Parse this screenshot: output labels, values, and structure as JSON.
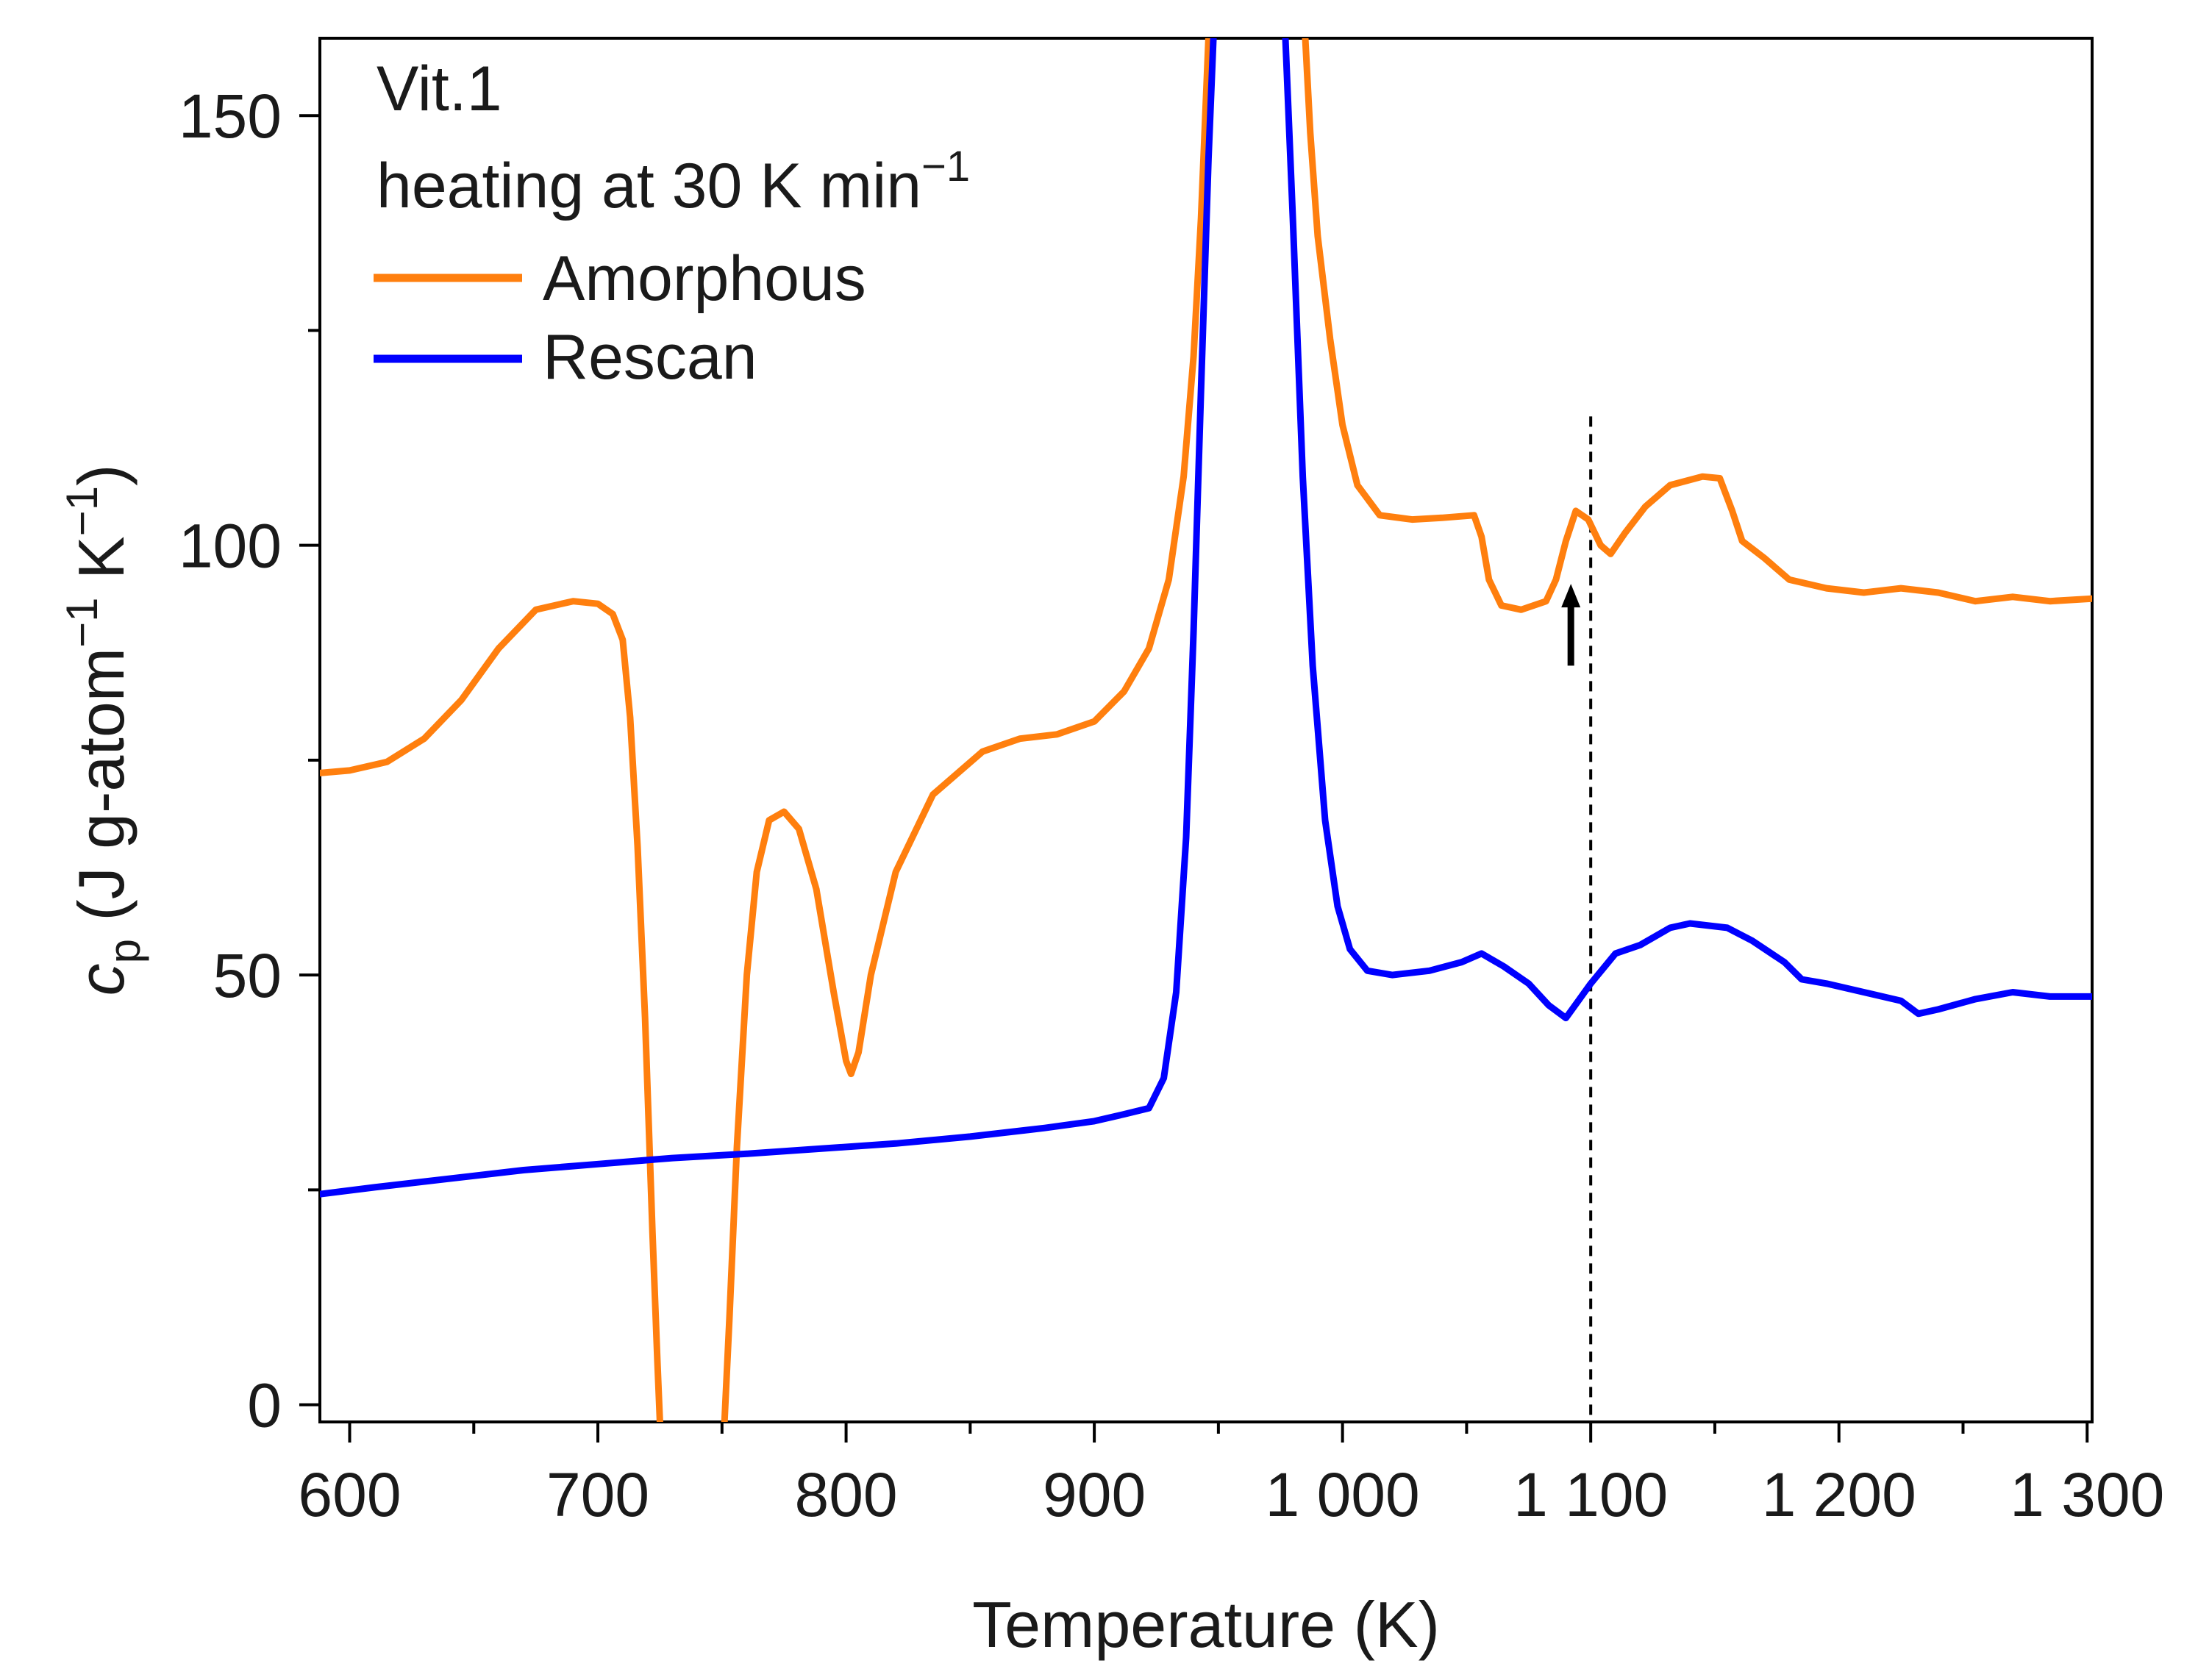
{
  "chart_data": {
    "type": "line",
    "title": "",
    "annotations": [
      "Vit.1",
      "heating at 30 K min",
      "−1"
    ],
    "xlabel": "Temperature (K)",
    "ylabel": {
      "prefix": "c",
      "subscript": "p",
      "mid": " (J g-atom",
      "sup1": "−1",
      "mid2": " K",
      "sup2": "−1",
      "suffix": ")"
    },
    "xlim": [
      588,
      1302
    ],
    "ylim": [
      -2,
      159
    ],
    "xticks": [
      600,
      700,
      800,
      900,
      1000,
      1100,
      1200,
      1300
    ],
    "xtick_labels": [
      "600",
      "700",
      "800",
      "900",
      "1 000",
      "1 100",
      "1 200",
      "1 300"
    ],
    "xminor": [
      650,
      750,
      850,
      950,
      1050,
      1150,
      1250
    ],
    "yticks": [
      0,
      50,
      100,
      150
    ],
    "ytick_labels": [
      "0",
      "50",
      "100",
      "150"
    ],
    "yminor": [
      25,
      75,
      125
    ],
    "reference_line": {
      "x": 1100,
      "y_top": 115,
      "style": "dashed"
    },
    "arrow": {
      "x": 1092,
      "y_from": 86,
      "y_to": 95
    },
    "series": [
      {
        "name": "Amorphous",
        "color": "#ff7f0e",
        "segments": [
          [
            [
              588,
              73.5
            ],
            [
              600,
              73.8
            ],
            [
              615,
              74.8
            ],
            [
              630,
              77.5
            ],
            [
              645,
              82
            ],
            [
              660,
              88
            ],
            [
              675,
              92.5
            ],
            [
              690,
              93.5
            ],
            [
              700,
              93.2
            ],
            [
              706,
              92
            ],
            [
              710,
              89
            ],
            [
              713,
              80
            ],
            [
              716,
              65
            ],
            [
              719,
              45
            ],
            [
              722,
              20
            ],
            [
              724,
              5
            ],
            [
              725,
              -2
            ]
          ],
          [
            [
              751,
              -2
            ],
            [
              753,
              10
            ],
            [
              756,
              30
            ],
            [
              760,
              50
            ],
            [
              764,
              62
            ],
            [
              769,
              68
            ],
            [
              775,
              69
            ],
            [
              781,
              67
            ],
            [
              788,
              60
            ],
            [
              795,
              48
            ],
            [
              800,
              40
            ],
            [
              802,
              38.5
            ],
            [
              805,
              41
            ],
            [
              810,
              50
            ],
            [
              820,
              62
            ],
            [
              835,
              71
            ],
            [
              855,
              76
            ],
            [
              870,
              77.5
            ],
            [
              885,
              78
            ],
            [
              900,
              79.5
            ],
            [
              912,
              83
            ],
            [
              922,
              88
            ],
            [
              930,
              96
            ],
            [
              936,
              108
            ],
            [
              940,
              122
            ],
            [
              943,
              138
            ],
            [
              946,
              159
            ]
          ],
          [
            [
              985,
              159
            ],
            [
              987,
              148
            ],
            [
              990,
              136
            ],
            [
              995,
              124
            ],
            [
              1000,
              114
            ],
            [
              1006,
              107
            ],
            [
              1015,
              103.5
            ],
            [
              1028,
              103
            ],
            [
              1040,
              103.2
            ],
            [
              1053,
              103.5
            ],
            [
              1056,
              101
            ],
            [
              1059,
              96
            ],
            [
              1064,
              93
            ],
            [
              1072,
              92.5
            ],
            [
              1082,
              93.5
            ],
            [
              1086,
              96
            ],
            [
              1090,
              100.5
            ],
            [
              1094,
              104
            ],
            [
              1099,
              103
            ],
            [
              1104,
              100
            ],
            [
              1108,
              99
            ],
            [
              1114,
              101.5
            ],
            [
              1122,
              104.5
            ],
            [
              1132,
              107
            ],
            [
              1145,
              108
            ],
            [
              1152,
              107.8
            ],
            [
              1157,
              104
            ],
            [
              1161,
              100.5
            ],
            [
              1170,
              98.5
            ],
            [
              1180,
              96
            ],
            [
              1195,
              95
            ],
            [
              1210,
              94.5
            ],
            [
              1225,
              95
            ],
            [
              1240,
              94.5
            ],
            [
              1255,
              93.5
            ],
            [
              1270,
              94
            ],
            [
              1285,
              93.5
            ],
            [
              1302,
              93.8
            ]
          ]
        ]
      },
      {
        "name": "Rescan",
        "color": "#0000ff",
        "segments": [
          [
            [
              588,
              24.5
            ],
            [
              610,
              25.3
            ],
            [
              640,
              26.3
            ],
            [
              670,
              27.3
            ],
            [
              700,
              28
            ],
            [
              730,
              28.7
            ],
            [
              760,
              29.2
            ],
            [
              790,
              29.8
            ],
            [
              820,
              30.4
            ],
            [
              850,
              31.2
            ],
            [
              880,
              32.2
            ],
            [
              900,
              33
            ],
            [
              912,
              33.8
            ],
            [
              922,
              34.5
            ],
            [
              928,
              38
            ],
            [
              933,
              48
            ],
            [
              937,
              66
            ],
            [
              940,
              90
            ],
            [
              943,
              118
            ],
            [
              946,
              145
            ],
            [
              948,
              159
            ]
          ],
          [
            [
              977,
              159
            ],
            [
              980,
              138
            ],
            [
              984,
              108
            ],
            [
              988,
              86
            ],
            [
              993,
              68
            ],
            [
              998,
              58
            ],
            [
              1003,
              53
            ],
            [
              1010,
              50.5
            ],
            [
              1020,
              50
            ],
            [
              1035,
              50.5
            ],
            [
              1048,
              51.5
            ],
            [
              1056,
              52.5
            ],
            [
              1065,
              51
            ],
            [
              1075,
              49
            ],
            [
              1083,
              46.5
            ],
            [
              1090,
              45
            ],
            [
              1095,
              47
            ],
            [
              1100,
              49
            ],
            [
              1110,
              52.5
            ],
            [
              1120,
              53.5
            ],
            [
              1132,
              55.5
            ],
            [
              1140,
              56
            ],
            [
              1155,
              55.5
            ],
            [
              1165,
              54
            ],
            [
              1178,
              51.5
            ],
            [
              1185,
              49.5
            ],
            [
              1195,
              49
            ],
            [
              1210,
              48
            ],
            [
              1225,
              47
            ],
            [
              1232,
              45.5
            ],
            [
              1240,
              46
            ],
            [
              1255,
              47.2
            ],
            [
              1270,
              48
            ],
            [
              1285,
              47.5
            ],
            [
              1302,
              47.5
            ]
          ]
        ]
      }
    ]
  }
}
